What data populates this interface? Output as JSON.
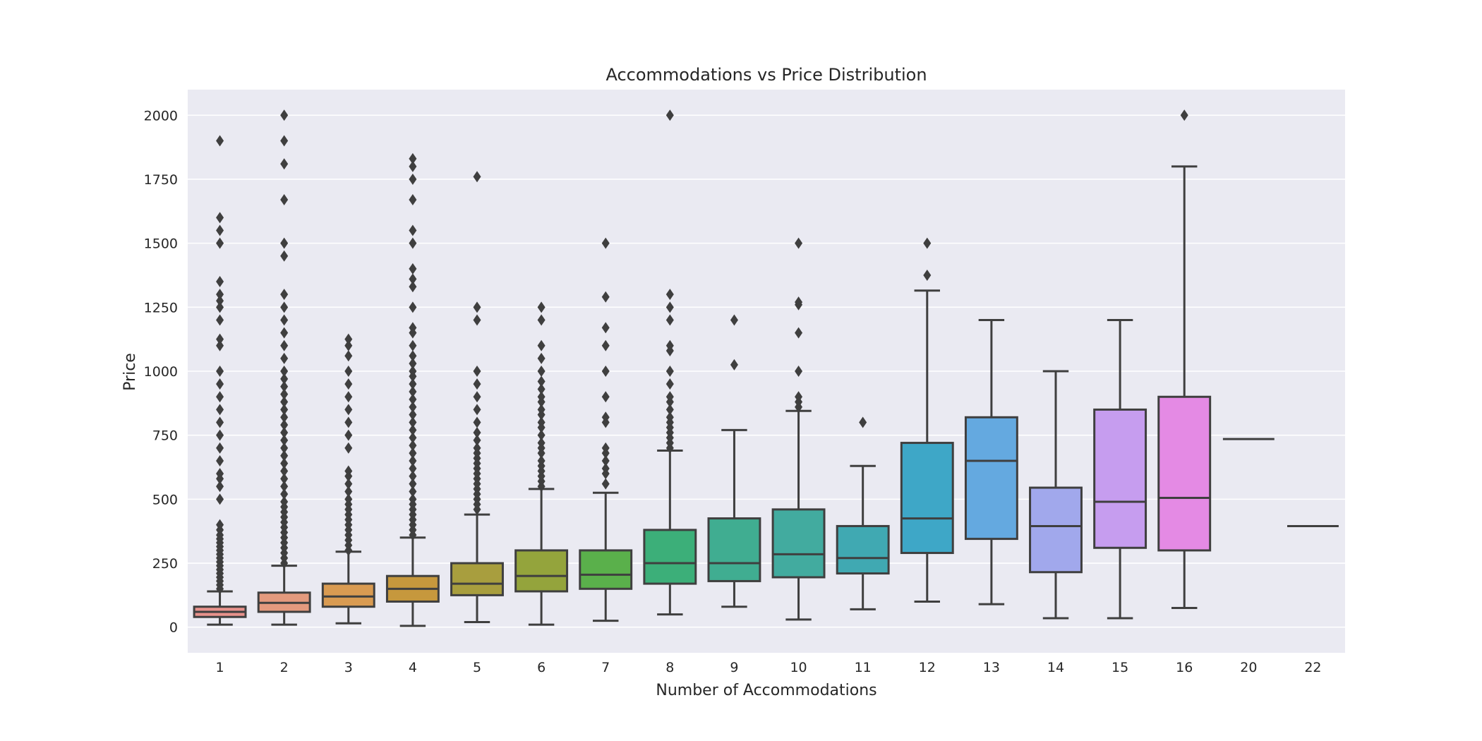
{
  "chart_data": {
    "type": "boxplot",
    "title": "Accommodations vs Price Distribution",
    "xlabel": "Number of Accommodations",
    "ylabel": "Price",
    "ylim": [
      -100,
      2100
    ],
    "yticks": [
      0,
      250,
      500,
      750,
      1000,
      1250,
      1500,
      1750,
      2000
    ],
    "grid": true,
    "background": "#eaeaf2",
    "categories": [
      "1",
      "2",
      "3",
      "4",
      "5",
      "6",
      "7",
      "8",
      "9",
      "10",
      "11",
      "12",
      "13",
      "14",
      "15",
      "16",
      "20",
      "22"
    ],
    "boxes": [
      {
        "category": "1",
        "color": "#e8928c",
        "whisker_low": 10,
        "q1": 40,
        "median": 60,
        "q3": 80,
        "whisker_high": 140,
        "outliers": [
          150,
          165,
          180,
          195,
          210,
          225,
          240,
          255,
          270,
          285,
          300,
          315,
          330,
          345,
          360,
          380,
          400,
          500,
          550,
          580,
          600,
          650,
          700,
          750,
          800,
          850,
          900,
          950,
          1000,
          1100,
          1125,
          1200,
          1250,
          1275,
          1300,
          1350,
          1500,
          1550,
          1600,
          1900
        ]
      },
      {
        "category": "2",
        "color": "#e49a7e",
        "whisker_low": 10,
        "q1": 60,
        "median": 95,
        "q3": 135,
        "whisker_high": 240,
        "outliers": [
          250,
          270,
          290,
          310,
          330,
          350,
          370,
          390,
          410,
          430,
          450,
          470,
          490,
          520,
          550,
          580,
          610,
          640,
          670,
          700,
          730,
          760,
          790,
          820,
          850,
          880,
          910,
          940,
          970,
          1000,
          1050,
          1100,
          1150,
          1200,
          1250,
          1300,
          1450,
          1500,
          1670,
          1810,
          1900,
          2000
        ]
      },
      {
        "category": "3",
        "color": "#d99b52",
        "whisker_low": 15,
        "q1": 80,
        "median": 120,
        "q3": 170,
        "whisker_high": 295,
        "outliers": [
          300,
          320,
          340,
          360,
          380,
          400,
          420,
          440,
          460,
          480,
          500,
          530,
          560,
          590,
          610,
          700,
          750,
          800,
          850,
          900,
          950,
          1000,
          1060,
          1100,
          1125
        ]
      },
      {
        "category": "4",
        "color": "#c6983d",
        "whisker_low": 5,
        "q1": 100,
        "median": 150,
        "q3": 200,
        "whisker_high": 350,
        "outliers": [
          360,
          380,
          400,
          420,
          440,
          460,
          480,
          500,
          530,
          560,
          590,
          620,
          650,
          680,
          710,
          740,
          770,
          800,
          830,
          860,
          890,
          920,
          950,
          980,
          1000,
          1030,
          1060,
          1100,
          1150,
          1170,
          1250,
          1330,
          1360,
          1400,
          1500,
          1550,
          1670,
          1750,
          1800,
          1830
        ]
      },
      {
        "category": "5",
        "color": "#a89e3e",
        "whisker_low": 20,
        "q1": 125,
        "median": 170,
        "q3": 250,
        "whisker_high": 440,
        "outliers": [
          460,
          480,
          500,
          520,
          540,
          560,
          580,
          600,
          620,
          640,
          660,
          680,
          700,
          730,
          760,
          800,
          850,
          900,
          950,
          1000,
          1200,
          1250,
          1760
        ]
      },
      {
        "category": "6",
        "color": "#94a43c",
        "whisker_low": 10,
        "q1": 140,
        "median": 200,
        "q3": 300,
        "whisker_high": 540,
        "outliers": [
          550,
          570,
          590,
          610,
          630,
          650,
          680,
          700,
          720,
          750,
          780,
          800,
          830,
          850,
          880,
          900,
          930,
          960,
          1000,
          1050,
          1100,
          1200,
          1250
        ]
      },
      {
        "category": "7",
        "color": "#5ab04b",
        "whisker_low": 25,
        "q1": 150,
        "median": 205,
        "q3": 300,
        "whisker_high": 525,
        "outliers": [
          560,
          600,
          620,
          650,
          680,
          700,
          800,
          820,
          900,
          1000,
          1100,
          1170,
          1290,
          1500
        ]
      },
      {
        "category": "8",
        "color": "#3caf79",
        "whisker_low": 50,
        "q1": 170,
        "median": 250,
        "q3": 380,
        "whisker_high": 690,
        "outliers": [
          700,
          720,
          740,
          760,
          780,
          800,
          820,
          850,
          880,
          900,
          950,
          1000,
          1080,
          1100,
          1200,
          1250,
          1300,
          2000
        ]
      },
      {
        "category": "9",
        "color": "#40ad91",
        "whisker_low": 80,
        "q1": 180,
        "median": 250,
        "q3": 425,
        "whisker_high": 770,
        "outliers": [
          1025,
          1200
        ]
      },
      {
        "category": "10",
        "color": "#42ab9f",
        "whisker_low": 30,
        "q1": 195,
        "median": 285,
        "q3": 460,
        "whisker_high": 845,
        "outliers": [
          860,
          880,
          900,
          1000,
          1150,
          1260,
          1270,
          1500
        ]
      },
      {
        "category": "11",
        "color": "#40a9b2",
        "whisker_low": 70,
        "q1": 210,
        "median": 270,
        "q3": 395,
        "whisker_high": 630,
        "outliers": [
          800
        ]
      },
      {
        "category": "12",
        "color": "#3ea7c7",
        "whisker_low": 100,
        "q1": 290,
        "median": 425,
        "q3": 720,
        "whisker_high": 1315,
        "outliers": [
          1375,
          1500
        ]
      },
      {
        "category": "13",
        "color": "#64a9e0",
        "whisker_low": 90,
        "q1": 345,
        "median": 650,
        "q3": 820,
        "whisker_high": 1200,
        "outliers": []
      },
      {
        "category": "14",
        "color": "#a1a8ec",
        "whisker_low": 35,
        "q1": 215,
        "median": 395,
        "q3": 545,
        "whisker_high": 1000,
        "outliers": []
      },
      {
        "category": "15",
        "color": "#c69def",
        "whisker_low": 35,
        "q1": 310,
        "median": 490,
        "q3": 850,
        "whisker_high": 1200,
        "outliers": []
      },
      {
        "category": "16",
        "color": "#e48ae4",
        "whisker_low": 75,
        "q1": 300,
        "median": 505,
        "q3": 900,
        "whisker_high": 1800,
        "outliers": [
          2000
        ]
      },
      {
        "category": "20",
        "color": "#e98dc7",
        "whisker_low": 735,
        "q1": 735,
        "median": 735,
        "q3": 735,
        "whisker_high": 735,
        "outliers": []
      },
      {
        "category": "22",
        "color": "#ec8fb1",
        "whisker_low": 395,
        "q1": 395,
        "median": 395,
        "q3": 395,
        "whisker_high": 395,
        "outliers": []
      }
    ]
  }
}
